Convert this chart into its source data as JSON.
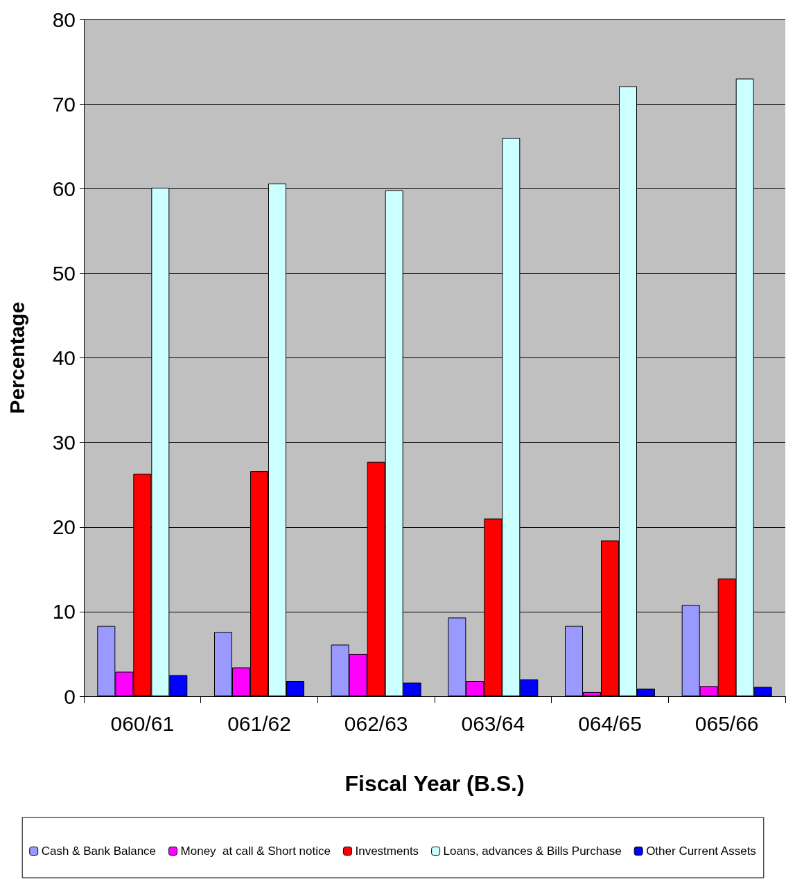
{
  "chart_data": {
    "type": "bar",
    "xlabel": "Fiscal Year (B.S.)",
    "ylabel": "Percentage",
    "categories": [
      "060/61",
      "061/62",
      "062/63",
      "063/64",
      "064/65",
      "065/66"
    ],
    "series": [
      {
        "name": "Cash & Bank Balance",
        "color": "#9999ff",
        "values": [
          8.3,
          7.6,
          6.1,
          9.3,
          8.3,
          10.8
        ]
      },
      {
        "name": "Money  at call & Short notice",
        "color": "#ff00ff",
        "values": [
          2.9,
          3.4,
          5.0,
          1.8,
          0.5,
          1.2
        ]
      },
      {
        "name": "Investments",
        "color": "#ff0000",
        "values": [
          26.3,
          26.6,
          27.7,
          21.0,
          18.4,
          13.9
        ]
      },
      {
        "name": "Loans, advances & Bills Purchase",
        "color": "#ccffff",
        "values": [
          60.1,
          60.6,
          59.8,
          66.0,
          72.1,
          73.0
        ]
      },
      {
        "name": "Other Current Assets",
        "color": "#0000ff",
        "values": [
          2.5,
          1.8,
          1.6,
          2.0,
          0.9,
          1.1
        ]
      }
    ],
    "ylim": [
      0,
      80
    ],
    "yticks": [
      0,
      10,
      20,
      30,
      40,
      50,
      60,
      70,
      80
    ],
    "grid": "y",
    "legend": "bottom"
  }
}
